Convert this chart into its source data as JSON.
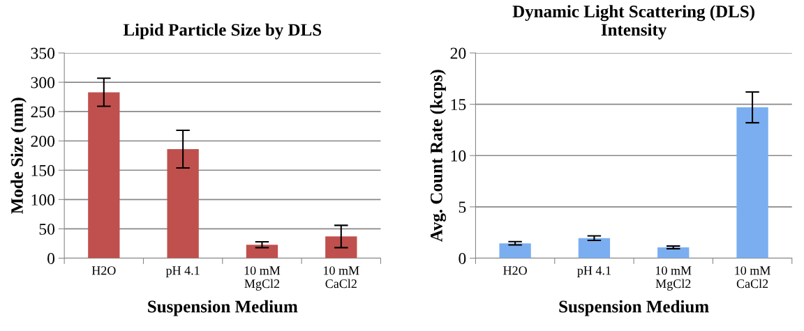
{
  "chart_data": [
    {
      "type": "bar",
      "title": "Lipid Particle Size by DLS",
      "xlabel": "Suspension Medium",
      "ylabel": "Mode Size (nm)",
      "categories": [
        "H2O",
        "pH 4.1",
        "10 mM\nMgCl2",
        "10 mM\nCaCl2"
      ],
      "values": [
        283,
        186,
        23,
        37
      ],
      "errors": [
        24,
        32,
        5,
        19
      ],
      "color": "#c0504d",
      "ylim": [
        0,
        350
      ],
      "yticks": [
        0,
        50,
        100,
        150,
        200,
        250,
        300,
        350
      ],
      "grid": "y",
      "legend": false
    },
    {
      "type": "bar",
      "title": "Dynamic Light Scattering (DLS)\nIntensity",
      "xlabel": "Suspension Medium",
      "ylabel": "Avg. Count Rate (kcps)",
      "categories": [
        "H2O",
        "pH 4.1",
        "10 mM\nMgCl2",
        "10 mM\nCaCl2"
      ],
      "values": [
        1.45,
        1.95,
        1.05,
        14.7
      ],
      "errors": [
        0.16,
        0.22,
        0.13,
        1.5
      ],
      "color": "#7aaef0",
      "ylim": [
        0,
        20
      ],
      "yticks": [
        0,
        5,
        10,
        15,
        20
      ],
      "grid": "y",
      "legend": false
    }
  ]
}
